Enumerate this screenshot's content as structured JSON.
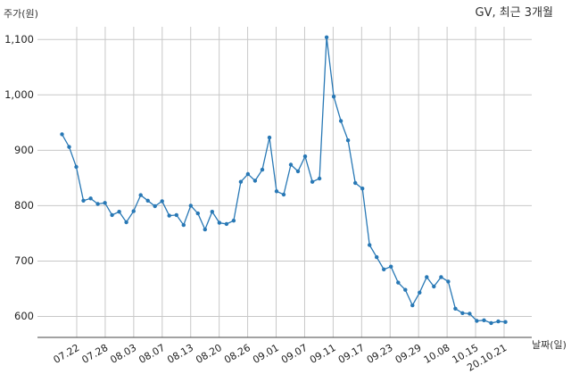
{
  "chart_data": {
    "type": "line",
    "title": "GV, 최근 3개월",
    "ylabel": "주가(원)",
    "xlabel": "날짜(일)",
    "ylim": [
      570,
      1120
    ],
    "yticks": [
      600,
      700,
      800,
      900,
      1000,
      1100
    ],
    "ytick_labels": [
      "600",
      "700",
      "800",
      "900",
      "1,000",
      "1,100"
    ],
    "xtick_labels": [
      "07.22",
      "07.28",
      "08.03",
      "08.07",
      "08.13",
      "08.20",
      "08.26",
      "09.01",
      "09.07",
      "09.11",
      "09.17",
      "09.23",
      "09.29",
      "10.08",
      "10.15",
      "20.10.21"
    ],
    "grid": true,
    "line_color": "#2878b5",
    "series": [
      {
        "values": [
          929,
          906,
          870,
          809,
          813,
          803,
          805,
          783,
          789,
          770,
          790,
          819,
          809,
          799,
          808,
          782,
          783,
          765,
          800,
          786,
          757,
          789,
          769,
          767,
          773,
          843,
          857,
          845,
          865,
          923,
          826,
          820,
          874,
          862,
          889,
          843,
          849,
          1104,
          997,
          953,
          918,
          841,
          831,
          729,
          707,
          685,
          690,
          661,
          648,
          620,
          643,
          671,
          654,
          671,
          663,
          614,
          606,
          605,
          592,
          593,
          588,
          591,
          590
        ]
      }
    ]
  }
}
